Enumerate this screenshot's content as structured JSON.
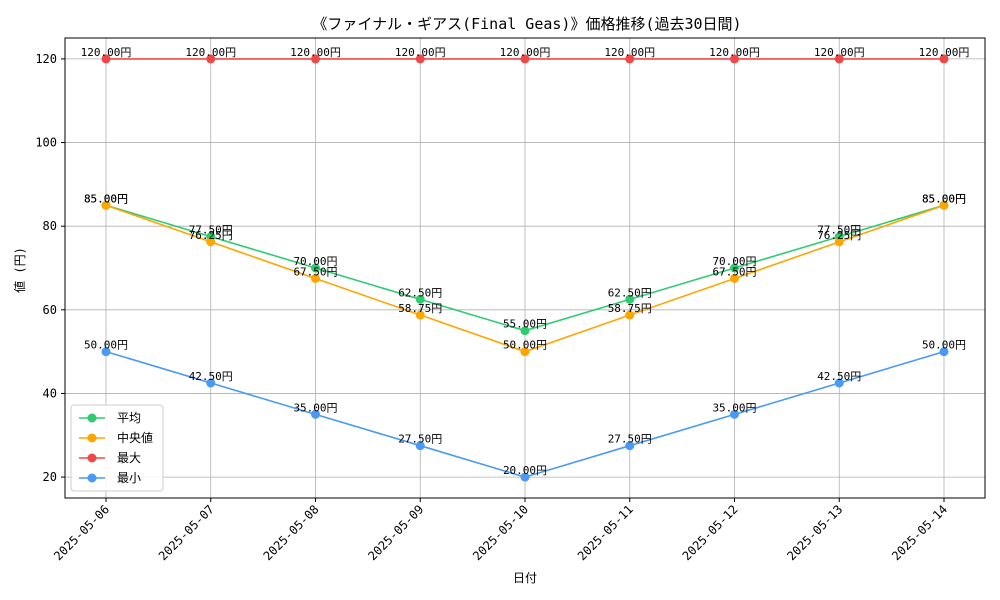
{
  "chart_data": {
    "type": "line",
    "title": "《ファイナル・ギアス(Final Geas)》価格推移(過去30日間)",
    "xlabel": "日付",
    "ylabel": "値 (円)",
    "categories": [
      "2025-05-06",
      "2025-05-07",
      "2025-05-08",
      "2025-05-09",
      "2025-05-10",
      "2025-05-11",
      "2025-05-12",
      "2025-05-13",
      "2025-05-14"
    ],
    "ylim": [
      15,
      125
    ],
    "yticks": [
      20,
      40,
      60,
      80,
      100,
      120
    ],
    "grid": true,
    "legend_position": "lower-left",
    "label_suffix": "円",
    "series": [
      {
        "name": "平均",
        "color": "#2ecc71",
        "values": [
          85.0,
          77.5,
          70.0,
          62.5,
          55.0,
          62.5,
          70.0,
          77.5,
          85.0
        ]
      },
      {
        "name": "中央値",
        "color": "#ffa500",
        "values": [
          85.0,
          76.25,
          67.5,
          58.75,
          50.0,
          58.75,
          67.5,
          76.25,
          85.0
        ]
      },
      {
        "name": "最大",
        "color": "#f04848",
        "values": [
          120.0,
          120.0,
          120.0,
          120.0,
          120.0,
          120.0,
          120.0,
          120.0,
          120.0
        ]
      },
      {
        "name": "最小",
        "color": "#4a9af5",
        "values": [
          50.0,
          42.5,
          35.0,
          27.5,
          20.0,
          27.5,
          35.0,
          42.5,
          50.0
        ]
      }
    ]
  }
}
